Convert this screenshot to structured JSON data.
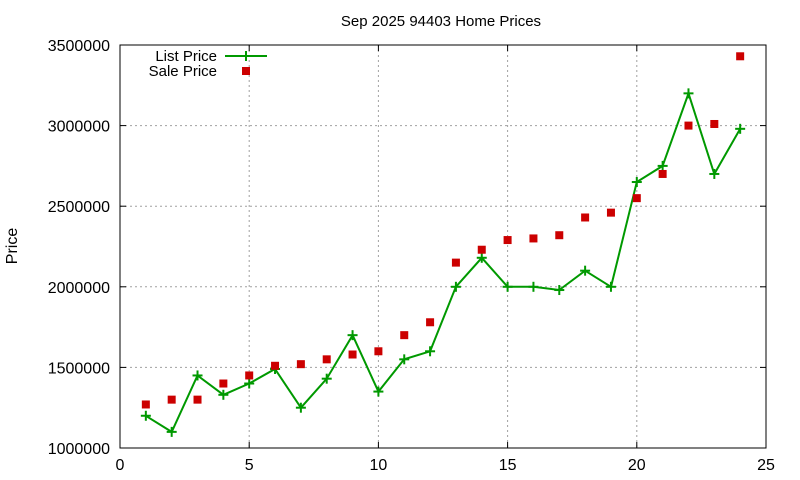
{
  "chart_data": {
    "type": "line",
    "title": "Sep 2025 94403 Home Prices",
    "xlabel": "",
    "ylabel": "Price",
    "xlim": [
      0,
      25
    ],
    "ylim": [
      1000000,
      3500000
    ],
    "x_ticks": [
      0,
      5,
      10,
      15,
      20,
      25
    ],
    "y_ticks": [
      1000000,
      1500000,
      2000000,
      2500000,
      3000000,
      3500000
    ],
    "grid": true,
    "legend_position": "top-left",
    "series": [
      {
        "name": "List Price",
        "style": "line-with-plus-markers",
        "color": "#009900",
        "x": [
          1,
          2,
          3,
          4,
          5,
          6,
          7,
          8,
          9,
          10,
          11,
          12,
          13,
          14,
          15,
          16,
          17,
          18,
          19,
          20,
          21,
          22,
          23,
          24
        ],
        "y": [
          1200000,
          1100000,
          1450000,
          1330000,
          1400000,
          1490000,
          1250000,
          1430000,
          1700000,
          1350000,
          1550000,
          1600000,
          2000000,
          2180000,
          2000000,
          2000000,
          1980000,
          2100000,
          2000000,
          2650000,
          2750000,
          3200000,
          2700000,
          2980000
        ]
      },
      {
        "name": "Sale Price",
        "style": "square-markers",
        "color": "#cc0000",
        "x": [
          1,
          2,
          3,
          4,
          5,
          6,
          7,
          8,
          9,
          10,
          11,
          12,
          13,
          14,
          15,
          16,
          17,
          18,
          19,
          20,
          21,
          22,
          23,
          24
        ],
        "y": [
          1270000,
          1300000,
          1300000,
          1400000,
          1450000,
          1510000,
          1520000,
          1550000,
          1580000,
          1600000,
          1700000,
          1780000,
          2150000,
          2230000,
          2290000,
          2300000,
          2320000,
          2430000,
          2460000,
          2550000,
          2700000,
          3000000,
          3010000,
          3430000
        ]
      }
    ]
  }
}
